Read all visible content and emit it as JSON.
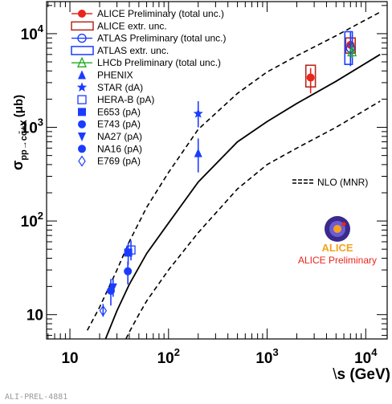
{
  "footer_id": "ALI-PREL-4881",
  "chart_data": {
    "type": "scatter",
    "x_scale": "log",
    "y_scale": "log",
    "xlim": [
      5.8,
      16500
    ],
    "ylim": [
      5.5,
      22000
    ],
    "xlabel": {
      "prefix": "\\",
      "main": "s (GeV)"
    },
    "ylabel": {
      "main": "σ",
      "sub": "pp→cc̄+X",
      "unit": "(μb)"
    },
    "x_ticks": [
      {
        "value": 10,
        "base": "10",
        "exp": ""
      },
      {
        "value": 100,
        "base": "10",
        "exp": "2"
      },
      {
        "value": 1000,
        "base": "10",
        "exp": "3"
      },
      {
        "value": 10000,
        "base": "10",
        "exp": "4"
      }
    ],
    "y_ticks": [
      {
        "value": 10,
        "base": "10",
        "exp": ""
      },
      {
        "value": 100,
        "base": "10",
        "exp": "2"
      },
      {
        "value": 1000,
        "base": "10",
        "exp": "3"
      },
      {
        "value": 10000,
        "base": "10",
        "exp": "4"
      }
    ],
    "colors": {
      "blue": "#1a3cff",
      "red": "#e8261c",
      "darkred": "#b5281c",
      "green": "#1faa1f"
    },
    "legend": [
      {
        "label": "ALICE Preliminary (total unc.)",
        "marker": "circle-filled",
        "color": "#e8261c",
        "errorbar": true
      },
      {
        "label": "ALICE extr. unc.",
        "marker": "box-open",
        "color": "#b5281c"
      },
      {
        "label": "ATLAS Preliminary (total unc.)",
        "marker": "circle-open",
        "color": "#1a3cff",
        "errorbar": true
      },
      {
        "label": "ATLAS extr. unc.",
        "marker": "box-open",
        "color": "#1a3cff"
      },
      {
        "label": "LHCb Preliminary (total unc.)",
        "marker": "triangle-open",
        "color": "#1faa1f",
        "errorbar": true
      },
      {
        "label": "PHENIX",
        "marker": "triangle-filled",
        "color": "#1a3cff"
      },
      {
        "label": "STAR (dA)",
        "marker": "star",
        "color": "#1a3cff"
      },
      {
        "label": "HERA-B (pA)",
        "marker": "square-open",
        "color": "#1a3cff"
      },
      {
        "label": "E653 (pA)",
        "marker": "square-filled",
        "color": "#1a3cff"
      },
      {
        "label": "E743 (pA)",
        "marker": "circle-filled",
        "color": "#1a3cff"
      },
      {
        "label": "NA27 (pA)",
        "marker": "triangle-down",
        "color": "#1a3cff"
      },
      {
        "label": "NA16 (pA)",
        "marker": "circle-filled",
        "color": "#1a3cff"
      },
      {
        "label": "E769 (pA)",
        "marker": "diamond-open",
        "color": "#1a3cff"
      }
    ],
    "nlo_label": "NLO (MNR)",
    "watermark": {
      "name": "ALICE",
      "caption": "ALICE Preliminary"
    },
    "series": [
      {
        "name": "ALICE Preliminary (total unc.)",
        "marker": "circle-filled",
        "color": "#e8261c",
        "points": [
          {
            "x": 2760,
            "y": 3400,
            "ylo": 2300,
            "yhi": 4300
          },
          {
            "x": 7000,
            "y": 7600,
            "ylo": 5900,
            "yhi": 9500
          }
        ]
      },
      {
        "name": "ALICE extr. unc.",
        "marker": "box-open",
        "color": "#b5281c",
        "points": [
          {
            "x": 2760,
            "ylo": 2700,
            "yhi": 4600,
            "w": 0.028
          },
          {
            "x": 7000,
            "ylo": 6200,
            "yhi": 9000,
            "w": 0.028
          }
        ]
      },
      {
        "name": "ATLAS Preliminary (total unc.)",
        "marker": "circle-open",
        "color": "#1a3cff",
        "points": [
          {
            "x": 7000,
            "y": 7000,
            "ylo": 4500,
            "yhi": 10500
          }
        ]
      },
      {
        "name": "ATLAS extr. unc.",
        "marker": "box-open",
        "color": "#1a3cff",
        "points": [
          {
            "x": 6700,
            "ylo": 4700,
            "yhi": 10500,
            "w": 0.022
          }
        ]
      },
      {
        "name": "LHCb Preliminary (total unc.)",
        "marker": "triangle-open",
        "color": "#1faa1f",
        "points": [
          {
            "x": 7250,
            "y": 6400,
            "ylo": 5500,
            "yhi": 7700
          }
        ]
      },
      {
        "name": "PHENIX",
        "marker": "triangle-filled",
        "color": "#1a3cff",
        "points": [
          {
            "x": 200,
            "y": 530,
            "ylo": 330,
            "yhi": 760
          }
        ]
      },
      {
        "name": "STAR (dA)",
        "marker": "star",
        "color": "#1a3cff",
        "points": [
          {
            "x": 200,
            "y": 1400,
            "ylo": 1000,
            "yhi": 1900
          }
        ]
      },
      {
        "name": "HERA-B (pA)",
        "marker": "square-open",
        "color": "#1a3cff",
        "points": [
          {
            "x": 41.6,
            "y": 49,
            "ylo": 38,
            "yhi": 62
          }
        ]
      },
      {
        "name": "E653 (pA)",
        "marker": "square-filled",
        "color": "#1a3cff",
        "points": [
          {
            "x": 39,
            "y": 46,
            "ylo": 34,
            "yhi": 58
          }
        ]
      },
      {
        "name": "E743 (pA)",
        "marker": "circle-filled",
        "color": "#1a3cff",
        "points": [
          {
            "x": 38.7,
            "y": 29,
            "ylo": 21,
            "yhi": 37
          }
        ]
      },
      {
        "name": "NA27 (pA)",
        "marker": "triangle-down",
        "color": "#1a3cff",
        "points": [
          {
            "x": 27.4,
            "y": 19.5,
            "ylo": 15.5,
            "yhi": 24
          }
        ]
      },
      {
        "name": "NA16 (pA)",
        "marker": "circle-filled",
        "color": "#1a3cff",
        "points": [
          {
            "x": 26,
            "y": 18,
            "ylo": 12.5,
            "yhi": 24
          }
        ]
      },
      {
        "name": "E769 (pA)",
        "marker": "diamond-open",
        "color": "#1a3cff",
        "points": [
          {
            "x": 21.7,
            "y": 11,
            "ylo": 9.5,
            "yhi": 13
          }
        ]
      }
    ],
    "curves": [
      {
        "name": "NLO central",
        "style": "solid",
        "x": [
          23,
          30,
          40,
          60,
          100,
          200,
          500,
          1000,
          2000,
          5000,
          14000
        ],
        "y": [
          5.5,
          11,
          21,
          45,
          95,
          260,
          700,
          1150,
          1800,
          3100,
          6000
        ]
      },
      {
        "name": "NLO upper",
        "style": "dashed",
        "x": [
          15,
          20,
          30,
          40,
          60,
          100,
          200,
          500,
          1000,
          2000,
          5000,
          7000,
          14000
        ],
        "y": [
          6.8,
          12,
          30,
          60,
          140,
          330,
          950,
          2300,
          3900,
          5800,
          9500,
          11500,
          17000
        ]
      },
      {
        "name": "NLO lower",
        "style": "dashed",
        "x": [
          37,
          40,
          50,
          60,
          100,
          200,
          500,
          1000,
          2000,
          5000,
          14000
        ],
        "y": [
          5.5,
          6.5,
          10,
          14,
          30,
          75,
          220,
          400,
          600,
          1000,
          1900
        ]
      }
    ]
  }
}
